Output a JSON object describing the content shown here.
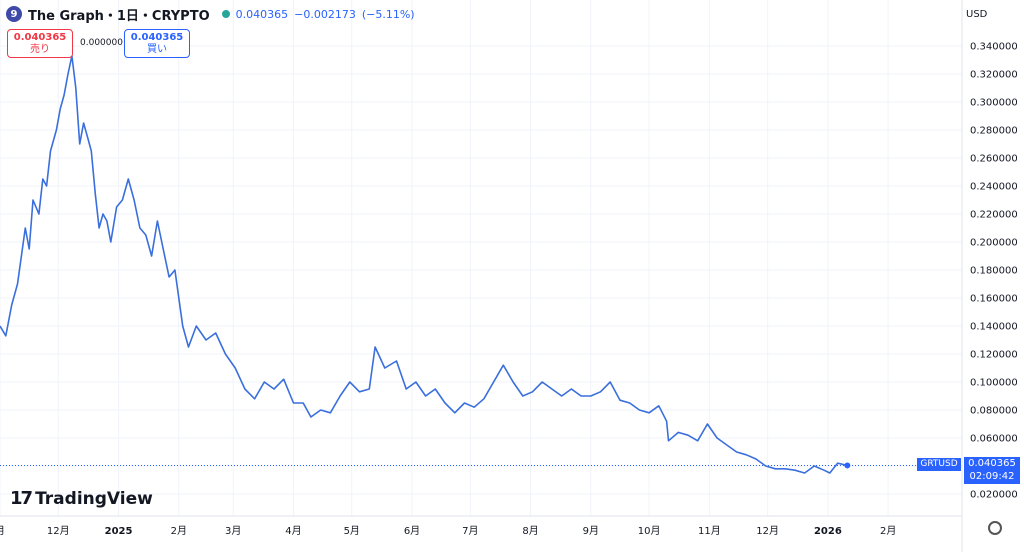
{
  "header": {
    "logo_letter": "9",
    "symbol": "The Graph・1日・CRYPTO",
    "price": "0.040365",
    "change": "−0.002173",
    "change_pct": "(−5.11%)"
  },
  "trade": {
    "sell_price": "0.040365",
    "sell_label": "売り",
    "spread": "0.000000",
    "buy_price": "0.040365",
    "buy_label": "買い"
  },
  "currency": "USD",
  "watermark": "TradingView",
  "last_tag": {
    "symbol": "GRTUSD",
    "price": "0.040365",
    "countdown": "02:09:42"
  },
  "colors": {
    "line": "#3a6fdc",
    "tag": "#2962ff",
    "grid": "#f0f3fa"
  },
  "chart_data": {
    "type": "line",
    "ylim": [
      0.0,
      0.36
    ],
    "y_ticks": [
      0.02,
      0.04,
      0.06,
      0.08,
      0.1,
      0.12,
      0.14,
      0.16,
      0.18,
      0.2,
      0.22,
      0.24,
      0.26,
      0.28,
      0.3,
      0.32,
      0.34
    ],
    "y_tick_labels": [
      "0.020000",
      "0.040000",
      "0.060000",
      "0.080000",
      "0.100000",
      "0.120000",
      "0.140000",
      "0.160000",
      "0.180000",
      "0.200000",
      "0.220000",
      "0.240000",
      "0.260000",
      "0.280000",
      "0.300000",
      "0.320000",
      "0.340000"
    ],
    "x_range": [
      "2024-11-01",
      "2026-03-11"
    ],
    "x_ticks": [
      {
        "date": "2024-11-01",
        "label": "月",
        "bold": false
      },
      {
        "date": "2024-12-01",
        "label": "12月",
        "bold": false
      },
      {
        "date": "2025-01-01",
        "label": "2025",
        "bold": true
      },
      {
        "date": "2025-02-01",
        "label": "2月",
        "bold": false
      },
      {
        "date": "2025-03-01",
        "label": "3月",
        "bold": false
      },
      {
        "date": "2025-04-01",
        "label": "4月",
        "bold": false
      },
      {
        "date": "2025-05-01",
        "label": "5月",
        "bold": false
      },
      {
        "date": "2025-06-01",
        "label": "6月",
        "bold": false
      },
      {
        "date": "2025-07-01",
        "label": "7月",
        "bold": false
      },
      {
        "date": "2025-08-01",
        "label": "8月",
        "bold": false
      },
      {
        "date": "2025-09-01",
        "label": "9月",
        "bold": false
      },
      {
        "date": "2025-10-01",
        "label": "10月",
        "bold": false
      },
      {
        "date": "2025-11-01",
        "label": "11月",
        "bold": false
      },
      {
        "date": "2025-12-01",
        "label": "12月",
        "bold": false
      },
      {
        "date": "2026-01-01",
        "label": "2026",
        "bold": true
      },
      {
        "date": "2026-02-01",
        "label": "2月",
        "bold": false
      }
    ],
    "series": [
      {
        "x": [
          "2024-11-01",
          "2024-11-04",
          "2024-11-07",
          "2024-11-10",
          "2024-11-12",
          "2024-11-14",
          "2024-11-16",
          "2024-11-18",
          "2024-11-21",
          "2024-11-23",
          "2024-11-25",
          "2024-11-27",
          "2024-11-30",
          "2024-12-02",
          "2024-12-04",
          "2024-12-06",
          "2024-12-08",
          "2024-12-10",
          "2024-12-12",
          "2024-12-14",
          "2024-12-16",
          "2024-12-18",
          "2024-12-20",
          "2024-12-22",
          "2024-12-24",
          "2024-12-26",
          "2024-12-28",
          "2024-12-31",
          "2025-01-03",
          "2025-01-06",
          "2025-01-09",
          "2025-01-12",
          "2025-01-15",
          "2025-01-18",
          "2025-01-21",
          "2025-01-24",
          "2025-01-27",
          "2025-01-30",
          "2025-02-03",
          "2025-02-06",
          "2025-02-10",
          "2025-02-15",
          "2025-02-20",
          "2025-02-25",
          "2025-03-02",
          "2025-03-07",
          "2025-03-12",
          "2025-03-17",
          "2025-03-22",
          "2025-03-27",
          "2025-04-01",
          "2025-04-06",
          "2025-04-10",
          "2025-04-15",
          "2025-04-20",
          "2025-04-25",
          "2025-04-30",
          "2025-05-05",
          "2025-05-10",
          "2025-05-13",
          "2025-05-18",
          "2025-05-24",
          "2025-05-29",
          "2025-06-03",
          "2025-06-08",
          "2025-06-13",
          "2025-06-18",
          "2025-06-23",
          "2025-06-28",
          "2025-07-03",
          "2025-07-08",
          "2025-07-13",
          "2025-07-18",
          "2025-07-23",
          "2025-07-28",
          "2025-08-02",
          "2025-08-07",
          "2025-08-12",
          "2025-08-17",
          "2025-08-22",
          "2025-08-27",
          "2025-09-01",
          "2025-09-06",
          "2025-09-11",
          "2025-09-16",
          "2025-09-21",
          "2025-09-26",
          "2025-10-01",
          "2025-10-06",
          "2025-10-10",
          "2025-10-11",
          "2025-10-16",
          "2025-10-21",
          "2025-10-26",
          "2025-10-31",
          "2025-11-05",
          "2025-11-10",
          "2025-11-15",
          "2025-11-20",
          "2025-11-25",
          "2025-11-30",
          "2025-12-05",
          "2025-12-10",
          "2025-12-15",
          "2025-12-20",
          "2025-12-25",
          "2025-12-30",
          "2026-01-02",
          "2026-01-06",
          "2026-01-11"
        ],
        "values": [
          0.14,
          0.133,
          0.155,
          0.17,
          0.19,
          0.21,
          0.195,
          0.23,
          0.22,
          0.245,
          0.24,
          0.265,
          0.28,
          0.295,
          0.305,
          0.32,
          0.333,
          0.31,
          0.27,
          0.285,
          0.275,
          0.265,
          0.235,
          0.21,
          0.22,
          0.215,
          0.2,
          0.225,
          0.23,
          0.245,
          0.23,
          0.21,
          0.205,
          0.19,
          0.215,
          0.195,
          0.175,
          0.18,
          0.14,
          0.125,
          0.14,
          0.13,
          0.135,
          0.12,
          0.11,
          0.095,
          0.088,
          0.1,
          0.095,
          0.102,
          0.085,
          0.085,
          0.075,
          0.08,
          0.078,
          0.09,
          0.1,
          0.093,
          0.095,
          0.125,
          0.11,
          0.115,
          0.095,
          0.1,
          0.09,
          0.095,
          0.085,
          0.078,
          0.085,
          0.082,
          0.088,
          0.1,
          0.112,
          0.1,
          0.09,
          0.093,
          0.1,
          0.095,
          0.09,
          0.095,
          0.09,
          0.09,
          0.093,
          0.1,
          0.087,
          0.085,
          0.08,
          0.078,
          0.083,
          0.072,
          0.058,
          0.064,
          0.062,
          0.058,
          0.07,
          0.06,
          0.055,
          0.05,
          0.048,
          0.045,
          0.04,
          0.038,
          0.038,
          0.037,
          0.035,
          0.04,
          0.037,
          0.035,
          0.042,
          0.0404
        ]
      }
    ]
  }
}
